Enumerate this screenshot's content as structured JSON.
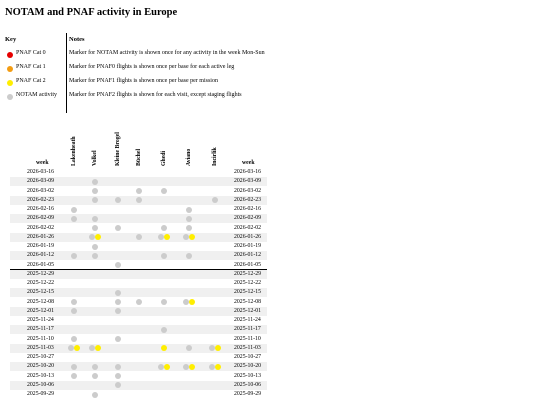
{
  "title": "NOTAM and PNAF activity in Europe",
  "legend": {
    "key_header": "Key",
    "notes_header": "Notes",
    "items": [
      {
        "label": "PNAF Cat 0",
        "color": "#e60000",
        "note": "Marker for NOTAM activity is shown once for any activity in the week Mon-Sun"
      },
      {
        "label": "PNAF Cat 1",
        "color": "#f39c12",
        "note": "Marker for PNAF0 flights is shown once per base for each active leg"
      },
      {
        "label": "PNAF Cat 2",
        "color": "#ffee00",
        "note": "Marker for PNAF1 flights is shown once per base per mission"
      },
      {
        "label": "NOTAM activity",
        "color": "#cccccc",
        "note": "Marker for PNAF2 flights is shown for each visit, except staging flights"
      }
    ]
  },
  "colors": {
    "notam": "#cccccc",
    "pnaf2": "#ffee00",
    "pnaf1": "#f39c12",
    "pnaf0": "#e60000"
  },
  "table": {
    "week_header": "week",
    "bases": [
      "Lakenheath",
      "Volkel",
      "Kleine Brogel",
      "Büchel",
      "Ghedi",
      "Aviano",
      "Incirlik"
    ],
    "rows": [
      {
        "week": "2026-03-16",
        "cells": [
          [],
          [],
          [],
          [],
          [],
          [],
          []
        ]
      },
      {
        "week": "2026-03-09",
        "cells": [
          [],
          [
            "n"
          ],
          [],
          [],
          [],
          [],
          []
        ]
      },
      {
        "week": "2026-03-02",
        "cells": [
          [],
          [
            "n"
          ],
          [],
          [
            "n"
          ],
          [
            "n"
          ],
          [],
          []
        ]
      },
      {
        "week": "2026-02-23",
        "cells": [
          [],
          [
            "n"
          ],
          [
            "n"
          ],
          [
            "n"
          ],
          [],
          [],
          [
            "n"
          ]
        ]
      },
      {
        "week": "2026-02-16",
        "cells": [
          [
            "n"
          ],
          [],
          [],
          [],
          [],
          [
            "n"
          ],
          []
        ]
      },
      {
        "week": "2026-02-09",
        "cells": [
          [
            "n"
          ],
          [
            "n"
          ],
          [],
          [],
          [],
          [
            "n"
          ],
          []
        ]
      },
      {
        "week": "2026-02-02",
        "cells": [
          [],
          [
            "n"
          ],
          [
            "n"
          ],
          [],
          [
            "n"
          ],
          [
            "n"
          ],
          []
        ]
      },
      {
        "week": "2026-01-26",
        "cells": [
          [],
          [
            "n",
            "y"
          ],
          [],
          [
            "n"
          ],
          [
            "n",
            "y"
          ],
          [
            "n",
            "y"
          ],
          []
        ]
      },
      {
        "week": "2026-01-19",
        "cells": [
          [],
          [
            "n"
          ],
          [],
          [],
          [],
          [],
          []
        ]
      },
      {
        "week": "2026-01-12",
        "cells": [
          [
            "n"
          ],
          [
            "n"
          ],
          [],
          [],
          [
            "n"
          ],
          [
            "n"
          ],
          []
        ]
      },
      {
        "week": "2026-01-05",
        "cells": [
          [],
          [],
          [
            "n"
          ],
          [],
          [],
          [],
          []
        ]
      },
      {
        "week": "2025-12-29",
        "cells": [
          [],
          [],
          [],
          [],
          [],
          [],
          []
        ]
      },
      {
        "week": "2025-12-22",
        "cells": [
          [],
          [],
          [],
          [],
          [],
          [],
          []
        ]
      },
      {
        "week": "2025-12-15",
        "cells": [
          [],
          [],
          [
            "n"
          ],
          [],
          [],
          [],
          []
        ]
      },
      {
        "week": "2025-12-08",
        "cells": [
          [
            "n"
          ],
          [],
          [
            "n"
          ],
          [
            "n"
          ],
          [
            "n"
          ],
          [
            "n",
            "y"
          ],
          []
        ]
      },
      {
        "week": "2025-12-01",
        "cells": [
          [
            "n"
          ],
          [],
          [
            "n"
          ],
          [],
          [],
          [],
          []
        ]
      },
      {
        "week": "2025-11-24",
        "cells": [
          [],
          [],
          [],
          [],
          [],
          [],
          []
        ]
      },
      {
        "week": "2025-11-17",
        "cells": [
          [],
          [],
          [],
          [],
          [
            "n"
          ],
          [],
          []
        ]
      },
      {
        "week": "2025-11-10",
        "cells": [
          [
            "n"
          ],
          [],
          [
            "n"
          ],
          [],
          [],
          [],
          []
        ]
      },
      {
        "week": "2025-11-03",
        "cells": [
          [
            "n",
            "y"
          ],
          [
            "n",
            "y"
          ],
          [],
          [],
          [
            "y"
          ],
          [
            "n"
          ],
          [
            "n",
            "y"
          ]
        ]
      },
      {
        "week": "2025-10-27",
        "cells": [
          [],
          [],
          [],
          [],
          [],
          [],
          []
        ]
      },
      {
        "week": "2025-10-20",
        "cells": [
          [
            "n"
          ],
          [
            "n"
          ],
          [
            "n"
          ],
          [],
          [
            "n",
            "y"
          ],
          [
            "n",
            "y"
          ],
          [
            "n",
            "y"
          ]
        ]
      },
      {
        "week": "2025-10-13",
        "cells": [
          [
            "n"
          ],
          [
            "n"
          ],
          [
            "n"
          ],
          [],
          [],
          [],
          []
        ]
      },
      {
        "week": "2025-10-06",
        "cells": [
          [],
          [],
          [
            "n"
          ],
          [],
          [],
          [],
          []
        ]
      },
      {
        "week": "2025-09-29",
        "cells": [
          [],
          [
            "n"
          ],
          [],
          [],
          [],
          [],
          []
        ]
      }
    ]
  }
}
